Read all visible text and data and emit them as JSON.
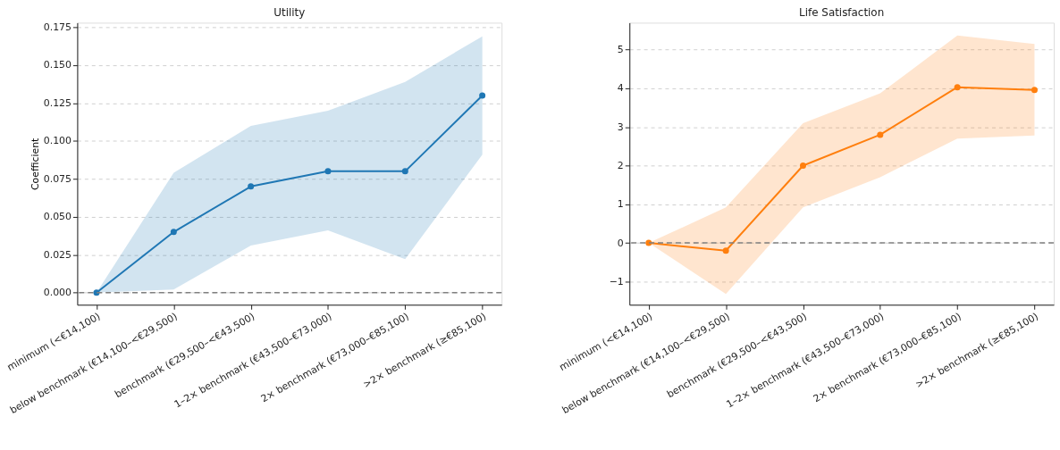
{
  "chart_data": [
    {
      "type": "line",
      "title": "Utility",
      "ylabel": "Coefficient",
      "categories": [
        "minimum (<€14,100)",
        "below benchmark (€14,100–<€29,500)",
        "benchmark (€29,500–<€43,500)",
        "1–2× benchmark (€43,500–€73,000)",
        "2× benchmark (€73,000–€85,100)",
        ">2× benchmark (≥€85,100)"
      ],
      "series": [
        {
          "color": "#1f77b4",
          "values": [
            0,
            0.04,
            0.07,
            0.08,
            0.08,
            0.13
          ],
          "lower": [
            0,
            0.002,
            0.031,
            0.041,
            0.022,
            0.091
          ],
          "upper": [
            0,
            0.079,
            0.11,
            0.12,
            0.139,
            0.169
          ]
        }
      ],
      "ylim": [
        -0.008,
        0.178
      ],
      "yticks": [
        {
          "value": 0,
          "label": "0.000"
        },
        {
          "value": 0.025,
          "label": "0.025"
        },
        {
          "value": 0.05,
          "label": "0.050"
        },
        {
          "value": 0.075,
          "label": "0.075"
        },
        {
          "value": 0.1,
          "label": "0.100"
        },
        {
          "value": 0.125,
          "label": "0.125"
        },
        {
          "value": 0.15,
          "label": "0.150"
        },
        {
          "value": 0.175,
          "label": "0.175"
        }
      ],
      "ref_lines": [
        {
          "axis": "y",
          "value": 0,
          "color": "#808080",
          "line_style": "dashed"
        }
      ],
      "grid": "y",
      "marker": "circle",
      "line_style": "solid"
    },
    {
      "type": "line",
      "title": "Life Satisfaction",
      "categories": [
        "minimum (<€14,100)",
        "below benchmark (€14,100–<€29,500)",
        "benchmark (€29,500–<€43,500)",
        "1–2× benchmark (€43,500–€73,000)",
        "2× benchmark (€73,000–€85,100)",
        ">2× benchmark (≥€85,100)"
      ],
      "series": [
        {
          "color": "#ff7f0e",
          "values": [
            0,
            -0.2,
            2.0,
            2.8,
            4.03,
            3.96
          ],
          "lower": [
            0,
            -1.32,
            0.92,
            1.7,
            2.7,
            2.78
          ],
          "upper": [
            0,
            0.92,
            3.1,
            3.87,
            5.37,
            5.15
          ]
        }
      ],
      "ylim": [
        -1.6,
        5.7
      ],
      "yticks": [
        {
          "value": -1,
          "label": "−1"
        },
        0,
        1,
        2,
        3,
        4,
        5
      ],
      "ref_lines": [
        {
          "axis": "y",
          "value": 0,
          "color": "#808080",
          "line_style": "dashed"
        }
      ],
      "grid": "y",
      "marker": "circle",
      "line_style": "solid"
    }
  ]
}
